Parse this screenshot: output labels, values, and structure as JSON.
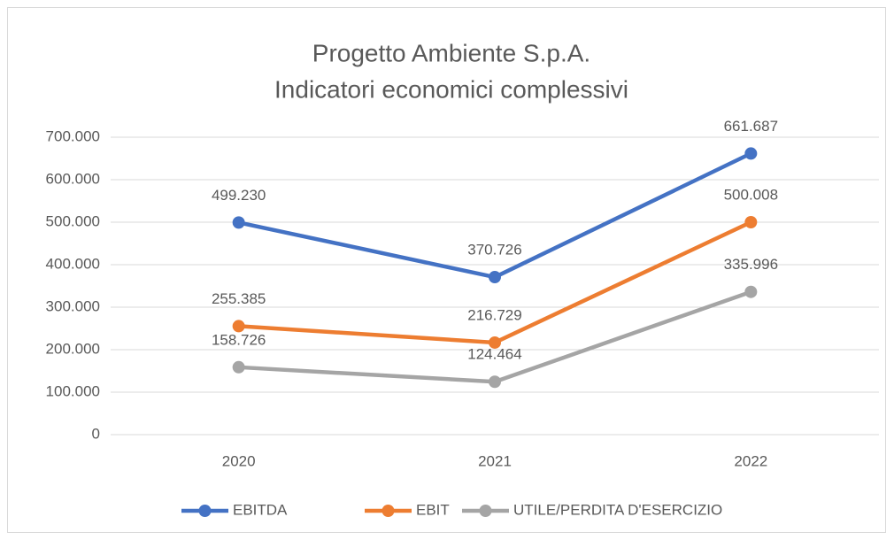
{
  "chart_data": {
    "type": "line",
    "title": [
      "Progetto Ambiente S.p.A.",
      "Indicatori economici complessivi"
    ],
    "categories": [
      "2020",
      "2021",
      "2022"
    ],
    "series": [
      {
        "name": "EBITDA",
        "color": "#4472c4",
        "values": [
          499230,
          370726,
          661687
        ],
        "value_labels": [
          "499.230",
          "370.726",
          "661.687"
        ]
      },
      {
        "name": "EBIT",
        "color": "#ed7d31",
        "values": [
          255385,
          216729,
          500008
        ],
        "value_labels": [
          "255.385",
          "216.729",
          "500.008"
        ]
      },
      {
        "name": "UTILE/PERDITA D'ESERCIZIO",
        "color": "#a5a5a5",
        "values": [
          158726,
          124464,
          335996
        ],
        "value_labels": [
          "158.726",
          "124.464",
          "335.996"
        ]
      }
    ],
    "ylim": [
      0,
      700000
    ],
    "yticks": [
      0,
      {
        "value": 100000,
        "label": "100.000"
      },
      {
        "value": 200000,
        "label": "200.000"
      },
      {
        "value": 300000,
        "label": "300.000"
      },
      {
        "value": 400000,
        "label": "400.000"
      },
      {
        "value": 500000,
        "label": "500.000"
      },
      {
        "value": 600000,
        "label": "600.000"
      },
      {
        "value": 700000,
        "label": "700.000"
      }
    ],
    "grid": true,
    "legend": "bottom"
  }
}
